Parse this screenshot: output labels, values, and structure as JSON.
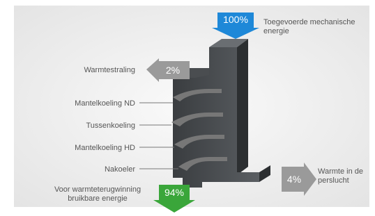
{
  "input": {
    "value": "100%",
    "label": "Toegevoerde mechanische energie"
  },
  "radiation": {
    "value": "2%",
    "label": "Warmtestraling"
  },
  "losses": [
    "Mantelkoeling ND",
    "Tussenkoeling",
    "Mantelkoeling HD",
    "Nakoeler"
  ],
  "compressed_air": {
    "value": "4%",
    "label": "Warmte in de perslucht"
  },
  "recoverable": {
    "value": "94%",
    "label": "Voor warmteterugwinning bruikbare energie"
  }
}
